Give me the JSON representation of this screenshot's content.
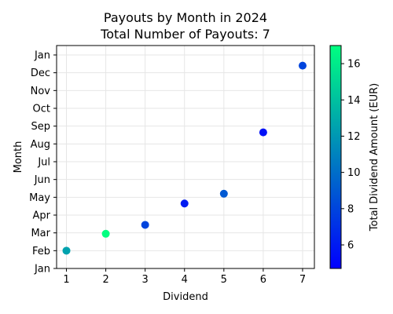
{
  "chart_data": {
    "type": "scatter",
    "title": "Payouts by Month in 2024",
    "subtitle": "Total Number of Payouts: 7",
    "xlabel": "Dividend",
    "ylabel": "Month",
    "xlim": [
      0.75,
      7.3
    ],
    "x_ticks": [
      1,
      2,
      3,
      4,
      5,
      6,
      7
    ],
    "y_tick_labels": [
      "Jan",
      "Feb",
      "Mar",
      "Apr",
      "May",
      "Jun",
      "Jul",
      "Aug",
      "Sep",
      "Oct",
      "Nov",
      "Dec",
      "Jan"
    ],
    "y_tick_values": [
      0,
      1,
      2,
      3,
      4,
      5,
      6,
      7,
      8,
      9,
      10,
      11,
      12
    ],
    "grid": true,
    "points": [
      {
        "x": 1,
        "y": 1.0,
        "amount": 12.5
      },
      {
        "x": 2,
        "y": 1.95,
        "amount": 17.0
      },
      {
        "x": 3,
        "y": 2.45,
        "amount": 8.0
      },
      {
        "x": 4,
        "y": 3.65,
        "amount": 6.0
      },
      {
        "x": 5,
        "y": 4.2,
        "amount": 9.0
      },
      {
        "x": 6,
        "y": 7.65,
        "amount": 5.5
      },
      {
        "x": 7,
        "y": 11.4,
        "amount": 8.0
      }
    ],
    "colorbar": {
      "label": "Total Dividend Amount (EUR)",
      "range": [
        4.7,
        17.0
      ],
      "ticks": [
        6,
        8,
        10,
        12,
        14,
        16
      ],
      "colormap": "winter",
      "color_low": "#0000ff",
      "color_high": "#00ff80"
    }
  }
}
